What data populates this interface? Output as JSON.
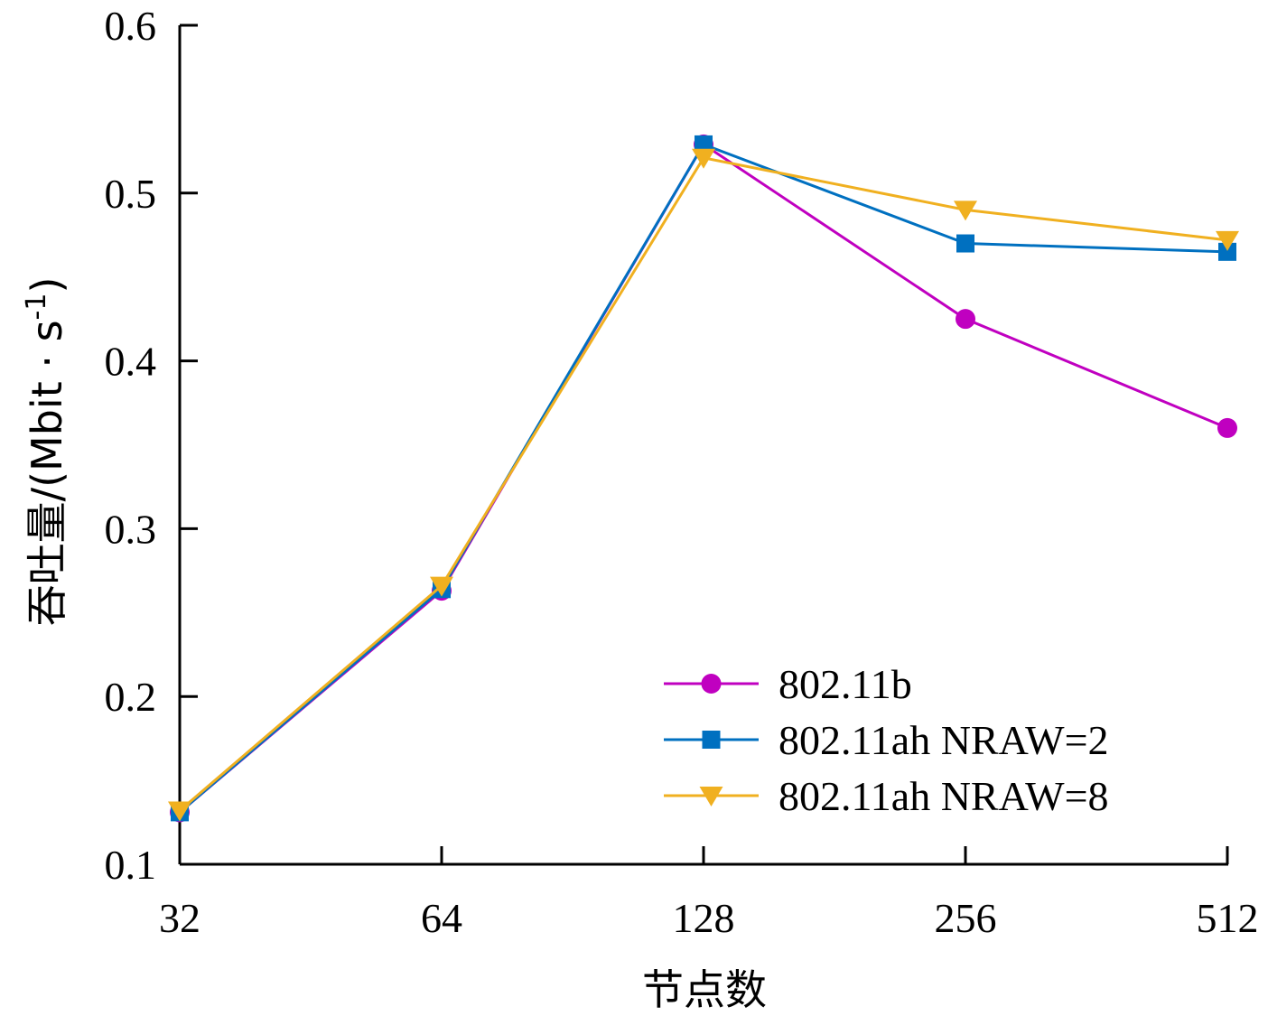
{
  "chart_data": {
    "type": "line",
    "title": "",
    "xlabel": "节点数",
    "ylabel": "吞吐量/(Mbit · s",
    "ylabel_sup": "-1",
    "ylabel_end": ")",
    "categories": [
      "32",
      "64",
      "128",
      "256",
      "512"
    ],
    "ylim": [
      0.1,
      0.6
    ],
    "yticks": [
      "0.1",
      "0.2",
      "0.3",
      "0.4",
      "0.5",
      "0.6"
    ],
    "grid": false,
    "legend_position": "bottom-right",
    "series": [
      {
        "name": "802.11b",
        "marker": "circle",
        "color": "#C000C0",
        "values": [
          0.131,
          0.263,
          0.529,
          0.425,
          0.36
        ]
      },
      {
        "name": "802.11ah NRAW=2",
        "marker": "square",
        "color": "#0070C0",
        "values": [
          0.131,
          0.264,
          0.529,
          0.47,
          0.465
        ]
      },
      {
        "name": "802.11ah NRAW=8",
        "marker": "triangle-down",
        "color": "#F0B020",
        "values": [
          0.132,
          0.266,
          0.521,
          0.49,
          0.472
        ]
      }
    ]
  }
}
